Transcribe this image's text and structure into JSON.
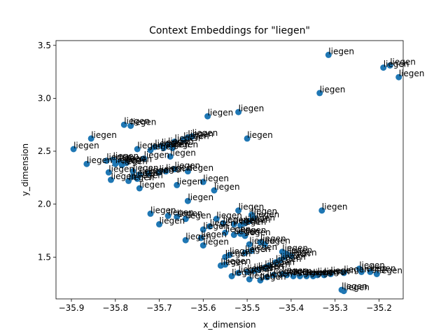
{
  "chart_data": {
    "type": "scatter",
    "title": "Context Embeddings for \"liegen\"",
    "xlabel": "x_dimension",
    "ylabel": "y_dimension",
    "xlim": [
      -35.935,
      -35.145
    ],
    "ylim": [
      1.105,
      3.545
    ],
    "xticks": [
      -35.9,
      -35.8,
      -35.7,
      -35.6,
      -35.5,
      -35.4,
      -35.3,
      -35.2
    ],
    "yticks": [
      1.5,
      2.0,
      2.5,
      3.0,
      3.5
    ],
    "xtick_labels": [
      "−35.9",
      "−35.8",
      "−35.7",
      "−35.6",
      "−35.5",
      "−35.4",
      "−35.3",
      "−35.2"
    ],
    "ytick_labels": [
      "1.5",
      "2.0",
      "2.5",
      "3.0",
      "3.5"
    ],
    "grid": false,
    "point_color": "#1f77b4",
    "point_label": "liegen",
    "points": [
      [
        -35.315,
        3.41
      ],
      [
        -35.19,
        3.29
      ],
      [
        -35.175,
        3.31
      ],
      [
        -35.155,
        3.2
      ],
      [
        -35.335,
        3.05
      ],
      [
        -35.52,
        2.87
      ],
      [
        -35.59,
        2.83
      ],
      [
        -35.5,
        2.62
      ],
      [
        -35.78,
        2.75
      ],
      [
        -35.765,
        2.74
      ],
      [
        -35.855,
        2.62
      ],
      [
        -35.895,
        2.52
      ],
      [
        -35.635,
        2.63
      ],
      [
        -35.625,
        2.64
      ],
      [
        -35.645,
        2.61
      ],
      [
        -35.665,
        2.59
      ],
      [
        -35.68,
        2.56
      ],
      [
        -35.695,
        2.55
      ],
      [
        -35.71,
        2.54
      ],
      [
        -35.75,
        2.52
      ],
      [
        -35.72,
        2.51
      ],
      [
        -35.67,
        2.53
      ],
      [
        -35.69,
        2.53
      ],
      [
        -35.735,
        2.43
      ],
      [
        -35.675,
        2.45
      ],
      [
        -35.82,
        2.41
      ],
      [
        -35.805,
        2.42
      ],
      [
        -35.79,
        2.4
      ],
      [
        -35.775,
        2.39
      ],
      [
        -35.785,
        2.37
      ],
      [
        -35.8,
        2.38
      ],
      [
        -35.865,
        2.38
      ],
      [
        -35.815,
        2.3
      ],
      [
        -35.76,
        2.31
      ],
      [
        -35.745,
        2.28
      ],
      [
        -35.725,
        2.29
      ],
      [
        -35.7,
        2.3
      ],
      [
        -35.685,
        2.31
      ],
      [
        -35.665,
        2.33
      ],
      [
        -35.635,
        2.31
      ],
      [
        -35.76,
        2.26
      ],
      [
        -35.77,
        2.22
      ],
      [
        -35.81,
        2.23
      ],
      [
        -35.75,
        2.24
      ],
      [
        -35.745,
        2.15
      ],
      [
        -35.66,
        2.18
      ],
      [
        -35.6,
        2.21
      ],
      [
        -35.575,
        2.13
      ],
      [
        -35.635,
        2.03
      ],
      [
        -35.72,
        1.91
      ],
      [
        -35.68,
        1.89
      ],
      [
        -35.66,
        1.88
      ],
      [
        -35.7,
        1.81
      ],
      [
        -35.64,
        1.86
      ],
      [
        -35.57,
        1.86
      ],
      [
        -35.555,
        1.82
      ],
      [
        -35.52,
        1.94
      ],
      [
        -35.49,
        1.9
      ],
      [
        -35.485,
        1.87
      ],
      [
        -35.495,
        1.84
      ],
      [
        -35.505,
        1.82
      ],
      [
        -35.515,
        1.8
      ],
      [
        -35.53,
        1.81
      ],
      [
        -35.585,
        1.79
      ],
      [
        -35.6,
        1.76
      ],
      [
        -35.55,
        1.73
      ],
      [
        -35.53,
        1.71
      ],
      [
        -35.515,
        1.72
      ],
      [
        -35.505,
        1.7
      ],
      [
        -35.64,
        1.66
      ],
      [
        -35.605,
        1.68
      ],
      [
        -35.6,
        1.61
      ],
      [
        -35.495,
        1.62
      ],
      [
        -35.46,
        1.62
      ],
      [
        -35.47,
        1.64
      ],
      [
        -35.55,
        1.5
      ],
      [
        -35.54,
        1.52
      ],
      [
        -35.505,
        1.54
      ],
      [
        -35.49,
        1.56
      ],
      [
        -35.42,
        1.55
      ],
      [
        -35.41,
        1.53
      ],
      [
        -35.4,
        1.51
      ],
      [
        -35.415,
        1.5
      ],
      [
        -35.425,
        1.47
      ],
      [
        -35.435,
        1.45
      ],
      [
        -35.45,
        1.42
      ],
      [
        -35.46,
        1.4
      ],
      [
        -35.475,
        1.38
      ],
      [
        -35.485,
        1.37
      ],
      [
        -35.5,
        1.36
      ],
      [
        -35.52,
        1.35
      ],
      [
        -35.535,
        1.32
      ],
      [
        -35.56,
        1.42
      ],
      [
        -35.55,
        1.43
      ],
      [
        -35.495,
        1.29
      ],
      [
        -35.47,
        1.28
      ],
      [
        -35.455,
        1.31
      ],
      [
        -35.44,
        1.33
      ],
      [
        -35.42,
        1.34
      ],
      [
        -35.41,
        1.33
      ],
      [
        -35.395,
        1.32
      ],
      [
        -35.38,
        1.32
      ],
      [
        -35.365,
        1.32
      ],
      [
        -35.35,
        1.32
      ],
      [
        -35.34,
        1.33
      ],
      [
        -35.325,
        1.33
      ],
      [
        -35.31,
        1.34
      ],
      [
        -35.28,
        1.35
      ],
      [
        -35.245,
        1.39
      ],
      [
        -35.24,
        1.36
      ],
      [
        -35.22,
        1.36
      ],
      [
        -35.205,
        1.34
      ],
      [
        -35.285,
        1.19
      ],
      [
        -35.28,
        1.18
      ],
      [
        -35.33,
        1.94
      ]
    ]
  }
}
